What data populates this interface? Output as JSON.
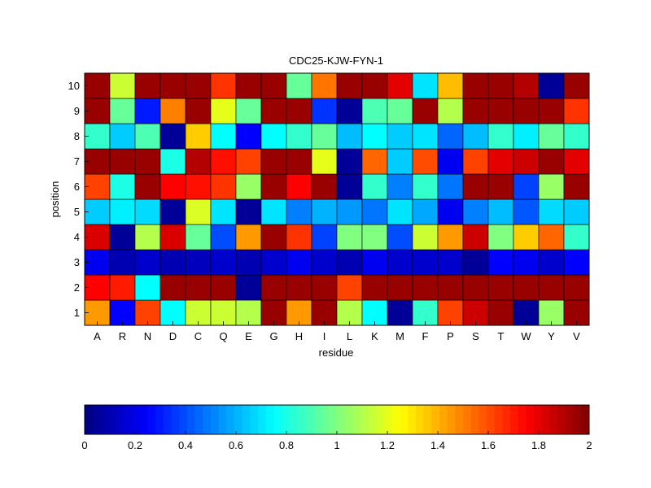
{
  "chart_data": {
    "type": "heatmap",
    "title": "CDC25-KJW-FYN-1",
    "xlabel": "residue",
    "ylabel": "position",
    "x_categories": [
      "A",
      "R",
      "N",
      "D",
      "C",
      "Q",
      "E",
      "G",
      "H",
      "I",
      "L",
      "K",
      "M",
      "F",
      "P",
      "S",
      "T",
      "W",
      "Y",
      "V"
    ],
    "y_categories": [
      "1",
      "2",
      "3",
      "4",
      "5",
      "6",
      "7",
      "8",
      "9",
      "10"
    ],
    "colormap": "jet",
    "clim": [
      0,
      2
    ],
    "colorbar": {
      "orientation": "horizontal",
      "placement": "bottom",
      "ticks": [
        "0",
        "0.2",
        "0.4",
        "0.6",
        "0.8",
        "1",
        "1.2",
        "1.4",
        "1.6",
        "1.8",
        "2"
      ]
    },
    "values": [
      [
        1.45,
        0.25,
        1.62,
        0.75,
        1.15,
        1.15,
        1.1,
        1.95,
        1.45,
        1.95,
        1.1,
        0.75,
        0.05,
        0.85,
        1.62,
        1.85,
        1.95,
        0.05,
        1.05,
        1.95
      ],
      [
        1.75,
        1.7,
        0.75,
        1.95,
        1.95,
        1.95,
        0.05,
        1.95,
        1.95,
        1.95,
        1.62,
        1.95,
        1.95,
        1.95,
        1.95,
        1.95,
        1.95,
        1.95,
        1.95,
        1.95
      ],
      [
        0.22,
        0.1,
        0.15,
        0.1,
        0.12,
        0.15,
        0.1,
        0.15,
        0.22,
        0.15,
        0.1,
        0.22,
        0.15,
        0.15,
        0.15,
        0.05,
        0.25,
        0.22,
        0.15,
        0.25
      ],
      [
        1.82,
        0.05,
        1.1,
        1.82,
        0.95,
        0.4,
        1.45,
        1.95,
        1.65,
        0.38,
        1.0,
        1.0,
        0.4,
        1.15,
        1.45,
        1.85,
        1.0,
        1.35,
        1.55,
        0.85
      ],
      [
        0.65,
        0.72,
        0.68,
        0.05,
        1.18,
        0.7,
        0.05,
        0.7,
        0.5,
        0.6,
        0.55,
        0.48,
        0.7,
        0.58,
        0.22,
        0.5,
        0.62,
        0.42,
        0.68,
        0.65
      ],
      [
        1.62,
        0.8,
        1.95,
        1.75,
        1.72,
        1.65,
        1.05,
        1.95,
        1.75,
        1.95,
        0.05,
        0.85,
        0.5,
        0.85,
        0.48,
        1.95,
        1.95,
        0.38,
        1.05,
        1.95
      ],
      [
        1.95,
        1.95,
        1.95,
        0.8,
        1.9,
        1.72,
        1.62,
        1.95,
        1.95,
        1.2,
        0.05,
        1.55,
        0.65,
        1.6,
        0.22,
        1.62,
        1.8,
        1.85,
        1.95,
        1.8
      ],
      [
        0.85,
        0.65,
        0.9,
        0.05,
        1.35,
        0.75,
        0.25,
        0.75,
        0.85,
        0.95,
        0.62,
        0.75,
        0.65,
        0.7,
        0.45,
        0.62,
        0.85,
        0.72,
        0.95,
        0.85
      ],
      [
        1.95,
        0.95,
        0.3,
        1.5,
        1.95,
        1.2,
        0.95,
        1.95,
        1.95,
        0.35,
        0.05,
        0.9,
        0.95,
        1.95,
        1.1,
        1.95,
        1.95,
        1.95,
        1.95,
        1.65
      ],
      [
        1.95,
        1.15,
        1.95,
        1.95,
        1.95,
        1.65,
        1.95,
        1.95,
        0.95,
        1.52,
        1.95,
        1.95,
        1.8,
        0.7,
        1.38,
        1.95,
        1.95,
        1.9,
        0.05,
        1.95
      ]
    ]
  }
}
